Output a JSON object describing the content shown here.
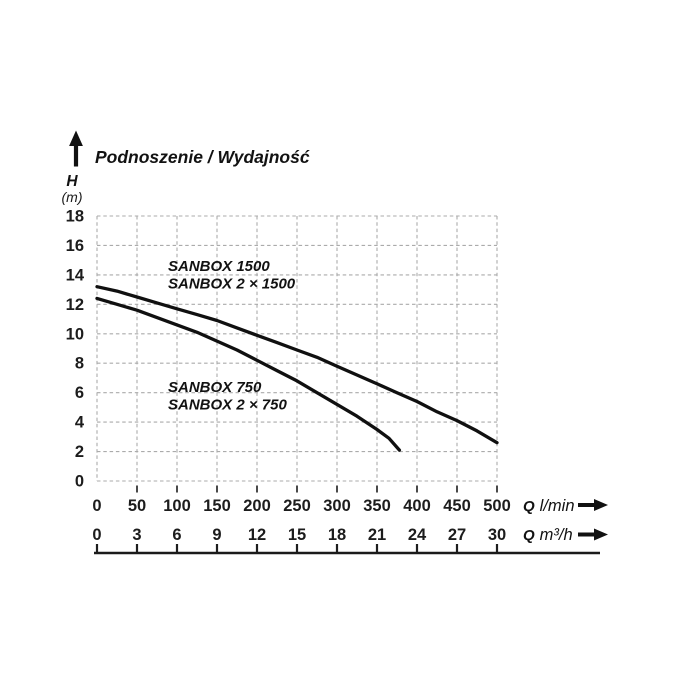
{
  "chart_data": {
    "type": "line",
    "title": "Podnoszenie / Wydajność",
    "y_axis": {
      "symbol": "H",
      "unit": "(m)",
      "range": [
        0,
        18
      ],
      "ticks": [
        18,
        16,
        14,
        12,
        10,
        8,
        6,
        4,
        2,
        0
      ]
    },
    "x_axes": [
      {
        "symbol": "Q",
        "unit": "l/min",
        "range": [
          0,
          500
        ],
        "ticks": [
          0,
          50,
          100,
          150,
          200,
          250,
          300,
          350,
          400,
          450,
          500
        ]
      },
      {
        "symbol": "Q",
        "unit": "m³/h",
        "range": [
          0,
          30
        ],
        "ticks": [
          0,
          3,
          6,
          9,
          12,
          15,
          18,
          21,
          24,
          27,
          30
        ]
      }
    ],
    "grid": {
      "show": true,
      "color": "#ababab",
      "style": "dashed"
    },
    "curve_color": "#101010",
    "series": [
      {
        "name": "SANBOX 1500 / SANBOX 2 × 1500",
        "label_lines": [
          "SANBOX 1500",
          "SANBOX 2 × 1500"
        ],
        "x_unit": "l/min",
        "points": [
          [
            0,
            13.2
          ],
          [
            25,
            12.9
          ],
          [
            50,
            12.5
          ],
          [
            75,
            12.1
          ],
          [
            100,
            11.7
          ],
          [
            125,
            11.3
          ],
          [
            150,
            10.9
          ],
          [
            175,
            10.4
          ],
          [
            200,
            9.9
          ],
          [
            225,
            9.4
          ],
          [
            250,
            8.9
          ],
          [
            275,
            8.4
          ],
          [
            300,
            7.8
          ],
          [
            325,
            7.2
          ],
          [
            350,
            6.6
          ],
          [
            375,
            6.0
          ],
          [
            400,
            5.4
          ],
          [
            425,
            4.7
          ],
          [
            450,
            4.1
          ],
          [
            475,
            3.4
          ],
          [
            500,
            2.6
          ]
        ]
      },
      {
        "name": "SANBOX 750 / SANBOX 2 × 750",
        "label_lines": [
          "SANBOX 750",
          "SANBOX 2 × 750"
        ],
        "x_unit": "l/min",
        "points": [
          [
            0,
            12.4
          ],
          [
            25,
            12.0
          ],
          [
            50,
            11.6
          ],
          [
            75,
            11.1
          ],
          [
            100,
            10.6
          ],
          [
            125,
            10.1
          ],
          [
            150,
            9.5
          ],
          [
            175,
            8.9
          ],
          [
            200,
            8.2
          ],
          [
            225,
            7.5
          ],
          [
            250,
            6.8
          ],
          [
            275,
            6.0
          ],
          [
            300,
            5.2
          ],
          [
            325,
            4.4
          ],
          [
            350,
            3.5
          ],
          [
            365,
            2.9
          ],
          [
            378,
            2.1
          ]
        ]
      }
    ]
  }
}
